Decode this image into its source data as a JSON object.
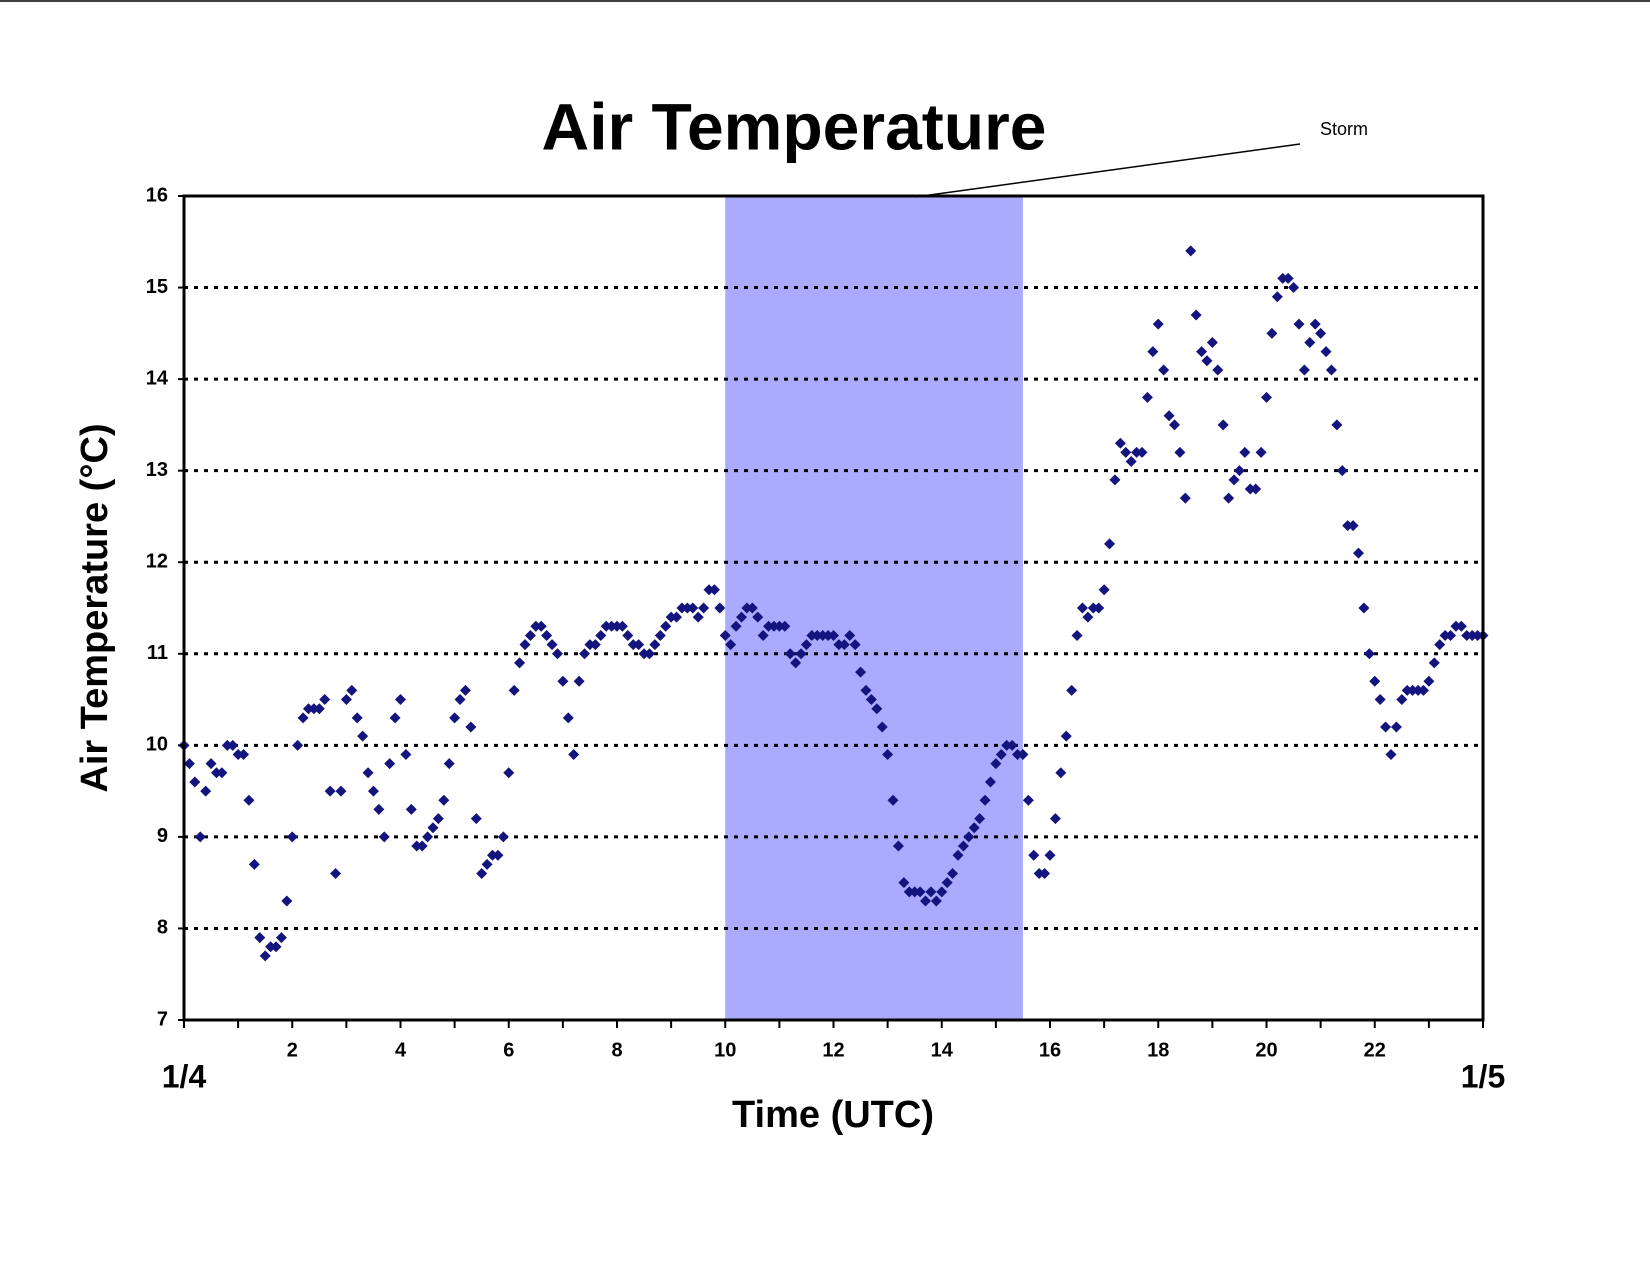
{
  "chart_data": {
    "type": "scatter",
    "title": "Air Temperature",
    "x_label": "Time (UTC)",
    "y_label": "Air Temperature (°C)",
    "annotation": "Storm",
    "highlight": {
      "xmin": 10,
      "xmax": 15.5,
      "color": "#aaaaff"
    },
    "color": "#14147f",
    "xlim": [
      0,
      24
    ],
    "ylim": [
      7,
      16
    ],
    "xticks": [
      {
        "value": 0,
        "label": "1/4"
      },
      2,
      4,
      6,
      8,
      10,
      12,
      14,
      16,
      18,
      20,
      22,
      {
        "value": 24,
        "label": "1/5"
      }
    ],
    "xminor_ticks": [
      1,
      3,
      5,
      7,
      9,
      11,
      13,
      15,
      17,
      19,
      21,
      23
    ],
    "yticks": [
      7,
      8,
      9,
      10,
      11,
      12,
      13,
      14,
      15,
      16
    ],
    "grid": true,
    "x": [
      0,
      0.1,
      0.2,
      0.3,
      0.4,
      0.5,
      0.6,
      0.7,
      0.8,
      0.9,
      1,
      1.1,
      1.2,
      1.3,
      1.4,
      1.5,
      1.6,
      1.7,
      1.8,
      1.9,
      2,
      2.1,
      2.2,
      2.3,
      2.4,
      2.5,
      2.6,
      2.7,
      2.8,
      2.9,
      3,
      3.1,
      3.2,
      3.3,
      3.4,
      3.5,
      3.6,
      3.7,
      3.8,
      3.9,
      4,
      4.1,
      4.2,
      4.3,
      4.4,
      4.5,
      4.6,
      4.7,
      4.8,
      4.9,
      5,
      5.1,
      5.2,
      5.3,
      5.4,
      5.5,
      5.6,
      5.7,
      5.8,
      5.9,
      6,
      6.1,
      6.2,
      6.3,
      6.4,
      6.5,
      6.6,
      6.7,
      6.8,
      6.9,
      7,
      7.1,
      7.2,
      7.3,
      7.4,
      7.5,
      7.6,
      7.7,
      7.8,
      7.9,
      8,
      8.1,
      8.2,
      8.3,
      8.4,
      8.5,
      8.6,
      8.7,
      8.8,
      8.9,
      9,
      9.1,
      9.2,
      9.3,
      9.4,
      9.5,
      9.6,
      9.7,
      9.8,
      9.9,
      10,
      10.1,
      10.2,
      10.3,
      10.4,
      10.5,
      10.6,
      10.7,
      10.8,
      10.9,
      11,
      11.1,
      11.2,
      11.3,
      11.4,
      11.5,
      11.6,
      11.7,
      11.8,
      11.9,
      12,
      12.1,
      12.2,
      12.3,
      12.4,
      12.5,
      12.6,
      12.7,
      12.8,
      12.9,
      13,
      13.1,
      13.2,
      13.3,
      13.4,
      13.5,
      13.6,
      13.7,
      13.8,
      13.9,
      14,
      14.1,
      14.2,
      14.3,
      14.4,
      14.5,
      14.6,
      14.7,
      14.8,
      14.9,
      15,
      15.1,
      15.2,
      15.3,
      15.4,
      15.5,
      15.6,
      15.7,
      15.8,
      15.9,
      16,
      16.1,
      16.2,
      16.3,
      16.4,
      16.5,
      16.6,
      16.7,
      16.8,
      16.9,
      17,
      17.1,
      17.2,
      17.3,
      17.4,
      17.5,
      17.6,
      17.7,
      17.8,
      17.9,
      18,
      18.1,
      18.2,
      18.3,
      18.4,
      18.5,
      18.6,
      18.7,
      18.8,
      18.9,
      19,
      19.1,
      19.2,
      19.3,
      19.4,
      19.5,
      19.6,
      19.7,
      19.8,
      19.9,
      20,
      20.1,
      20.2,
      20.3,
      20.4,
      20.5,
      20.6,
      20.7,
      20.8,
      20.9,
      21,
      21.1,
      21.2,
      21.3,
      21.4,
      21.5,
      21.6,
      21.7,
      21.8,
      21.9,
      22,
      22.1,
      22.2,
      22.3,
      22.4,
      22.5,
      22.6,
      22.7,
      22.8,
      22.9,
      23,
      23.1,
      23.2,
      23.3,
      23.4,
      23.5,
      23.6,
      23.7,
      23.8,
      23.9,
      24
    ],
    "values": [
      10.0,
      9.8,
      9.6,
      9.0,
      9.5,
      9.8,
      9.7,
      9.7,
      10.0,
      10.0,
      9.9,
      9.9,
      9.4,
      8.7,
      7.9,
      7.7,
      7.8,
      7.8,
      7.9,
      8.3,
      9.0,
      10.0,
      10.3,
      10.4,
      10.4,
      10.4,
      10.5,
      9.5,
      8.6,
      9.5,
      10.5,
      10.6,
      10.3,
      10.1,
      9.7,
      9.5,
      9.3,
      9.0,
      9.8,
      10.3,
      10.5,
      9.9,
      9.3,
      8.9,
      8.9,
      9.0,
      9.1,
      9.2,
      9.4,
      9.8,
      10.3,
      10.5,
      10.6,
      10.2,
      9.2,
      8.6,
      8.7,
      8.8,
      8.8,
      9.0,
      9.7,
      10.6,
      10.9,
      11.1,
      11.2,
      11.3,
      11.3,
      11.2,
      11.1,
      11.0,
      10.7,
      10.3,
      9.9,
      10.7,
      11.0,
      11.1,
      11.1,
      11.2,
      11.3,
      11.3,
      11.3,
      11.3,
      11.2,
      11.1,
      11.1,
      11.0,
      11.0,
      11.1,
      11.2,
      11.3,
      11.4,
      11.4,
      11.5,
      11.5,
      11.5,
      11.4,
      11.5,
      11.7,
      11.7,
      11.5,
      11.2,
      11.1,
      11.3,
      11.4,
      11.5,
      11.5,
      11.4,
      11.2,
      11.3,
      11.3,
      11.3,
      11.3,
      11.0,
      10.9,
      11.0,
      11.1,
      11.2,
      11.2,
      11.2,
      11.2,
      11.2,
      11.1,
      11.1,
      11.2,
      11.1,
      10.8,
      10.6,
      10.5,
      10.4,
      10.2,
      9.9,
      9.4,
      8.9,
      8.5,
      8.4,
      8.4,
      8.4,
      8.3,
      8.4,
      8.3,
      8.4,
      8.5,
      8.6,
      8.8,
      8.9,
      9.0,
      9.1,
      9.2,
      9.4,
      9.6,
      9.8,
      9.9,
      10.0,
      10.0,
      9.9,
      9.9,
      9.4,
      8.8,
      8.6,
      8.6,
      8.8,
      9.2,
      9.7,
      10.1,
      10.6,
      11.2,
      11.5,
      11.4,
      11.5,
      11.5,
      11.7,
      12.2,
      12.9,
      13.3,
      13.2,
      13.1,
      13.2,
      13.2,
      13.8,
      14.3,
      14.6,
      14.1,
      13.6,
      13.5,
      13.2,
      12.7,
      15.4,
      14.7,
      14.3,
      14.2,
      14.4,
      14.1,
      13.5,
      12.7,
      12.9,
      13.0,
      13.2,
      12.8,
      12.8,
      13.2,
      13.8,
      14.5,
      14.9,
      15.1,
      15.1,
      15.0,
      14.6,
      14.1,
      14.4,
      14.6,
      14.5,
      14.3,
      14.1,
      13.5,
      13.0,
      12.4,
      12.4,
      12.1,
      11.5,
      11.0,
      10.7,
      10.5,
      10.2,
      9.9,
      10.2,
      10.5,
      10.6,
      10.6,
      10.6,
      10.6,
      10.7,
      10.9,
      11.1,
      11.2,
      11.2,
      11.3,
      11.3,
      11.2,
      11.2,
      11.2,
      11.2
    ]
  }
}
